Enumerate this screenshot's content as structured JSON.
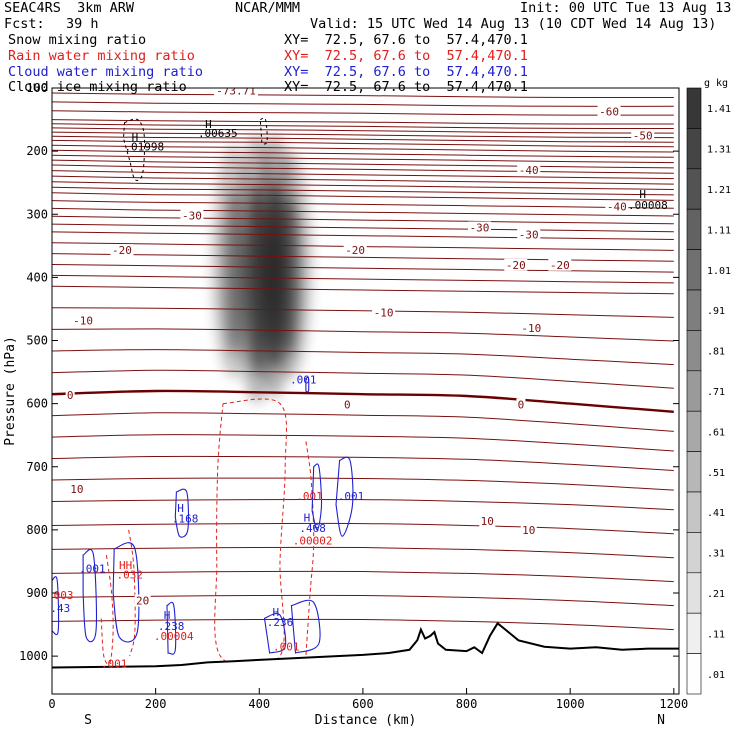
{
  "header": {
    "model": "SEAC4RS  3km ARW",
    "center": "NCAR/MMM",
    "init": "Init: 00 UTC Tue 13 Aug 13",
    "fcst_label": "Fcst:",
    "fcst_value": "39 h",
    "valid": "Valid: 15 UTC Wed 14 Aug 13 (10 CDT Wed 14 Aug 13)",
    "fields": [
      {
        "name": "Snow mixing ratio",
        "xy": "XY=  72.5, 67.6 to  57.4,470.1",
        "color": "#000000"
      },
      {
        "name": "Rain water mixing ratio",
        "xy": "XY=  72.5, 67.6 to  57.4,470.1",
        "color": "#e0201c"
      },
      {
        "name": "Cloud water mixing ratio",
        "xy": "XY=  72.5, 67.6 to  57.4,470.1",
        "color": "#2020d0"
      },
      {
        "name": "Cloud ice mixing ratio",
        "xy": "XY=  72.5, 67.6 to  57.4,470.1",
        "color": "#000000"
      }
    ]
  },
  "colors": {
    "temperature": "#7a1010",
    "freezing_level": "#6a0000",
    "rain": "#e0201c",
    "cloud_water": "#2020d0",
    "snow": "#000000",
    "terrain": "#000000"
  },
  "chart_data": {
    "type": "heatmap",
    "xlabel": "Distance (km)",
    "ylabel": "Pressure (hPa)",
    "xlim": [
      0,
      1210
    ],
    "ylim": [
      1060,
      100
    ],
    "x_ticks": [
      0,
      200,
      400,
      600,
      800,
      1000,
      1200
    ],
    "y_ticks": [
      200,
      300,
      400,
      500,
      600,
      700,
      800,
      900,
      1000
    ],
    "y_top_tick": "100",
    "end_labels": {
      "left": "S",
      "right": "N"
    },
    "colorbar": {
      "unit": "g kg",
      "unit_exp": "-1",
      "levels": [
        "1.41",
        "1.31",
        "1.21",
        "1.11",
        "1.01",
        ".91",
        ".81",
        ".71",
        ".61",
        ".51",
        ".41",
        ".31",
        ".21",
        ".11",
        ".01"
      ],
      "values": [
        1.41,
        1.31,
        1.21,
        1.11,
        1.01,
        0.91,
        0.81,
        0.71,
        0.61,
        0.51,
        0.41,
        0.31,
        0.21,
        0.11,
        0.01
      ]
    },
    "temperature_contours": [
      {
        "label": "-60",
        "p": [
          150,
          152,
          153,
          154,
          156,
          157,
          157
        ]
      },
      {
        "label": "-50",
        "p": [
          183,
          185,
          186,
          188,
          190,
          192,
          193
        ]
      },
      {
        "label": "-40",
        "p": [
          222,
          225,
          227,
          229,
          231,
          233,
          235
        ]
      },
      {
        "label": "-30",
        "p": [
          266,
          269,
          270,
          272,
          274,
          276,
          278
        ]
      },
      {
        "label": "-20",
        "p": [
          328,
          330,
          332,
          334,
          336,
          338,
          340
        ]
      },
      {
        "label": "-10",
        "p": [
          414,
          416,
          418,
          420,
          422,
          424,
          426
        ]
      },
      {
        "label": "0",
        "p": [
          585,
          580,
          582,
          585,
          588,
          600,
          613
        ]
      },
      {
        "label": "10",
        "p": [
          755,
          753,
          752,
          752,
          755,
          760,
          768
        ]
      }
    ],
    "temperature_contour_x": [
      0,
      200,
      400,
      600,
      800,
      1000,
      1200
    ],
    "temperature_labels": [
      {
        "text": "-73.71",
        "x": 355,
        "p": 104
      },
      {
        "text": "-60",
        "x": 1075,
        "p": 137
      },
      {
        "text": "-50",
        "x": 1140,
        "p": 175
      },
      {
        "text": "-40",
        "x": 920,
        "p": 230
      },
      {
        "text": "-40",
        "x": 1090,
        "p": 288
      },
      {
        "text": "-30",
        "x": 270,
        "p": 302
      },
      {
        "text": "-30",
        "x": 825,
        "p": 321
      },
      {
        "text": "-30",
        "x": 920,
        "p": 332
      },
      {
        "text": "-20",
        "x": 135,
        "p": 357
      },
      {
        "text": "-20",
        "x": 585,
        "p": 357
      },
      {
        "text": "-20",
        "x": 895,
        "p": 380
      },
      {
        "text": "-20",
        "x": 980,
        "p": 380
      },
      {
        "text": "-10",
        "x": 60,
        "p": 468
      },
      {
        "text": "-10",
        "x": 640,
        "p": 456
      },
      {
        "text": "-10",
        "x": 925,
        "p": 480
      },
      {
        "text": "0",
        "x": 35,
        "p": 586
      },
      {
        "text": "0",
        "x": 570,
        "p": 601
      },
      {
        "text": "0",
        "x": 905,
        "p": 601
      },
      {
        "text": "10",
        "x": 48,
        "p": 735
      },
      {
        "text": "10",
        "x": 840,
        "p": 786
      },
      {
        "text": "10",
        "x": 920,
        "p": 800
      },
      {
        "text": "20",
        "x": 175,
        "p": 912
      }
    ],
    "snow_max": 1.41,
    "snow_core": [
      {
        "x": 350,
        "p_top": 190,
        "p_bottom": 560,
        "peak": 0.7
      },
      {
        "x": 395,
        "p_top": 175,
        "p_bottom": 600,
        "peak": 1.2
      },
      {
        "x": 430,
        "p_top": 175,
        "p_bottom": 590,
        "peak": 1.31
      },
      {
        "x": 460,
        "p_top": 200,
        "p_bottom": 560,
        "peak": 0.8
      }
    ],
    "annotations": [
      {
        "text": "H",
        "x": 160,
        "p": 178,
        "color": "black"
      },
      {
        "text": ".01998",
        "x": 178,
        "p": 193,
        "color": "black"
      },
      {
        "text": "H",
        "x": 302,
        "p": 157,
        "color": "black"
      },
      {
        "text": ".00635",
        "x": 320,
        "p": 171,
        "color": "black"
      },
      {
        "text": "H",
        "x": 1140,
        "p": 268,
        "color": "black"
      },
      {
        "text": ".00008",
        "x": 1150,
        "p": 285,
        "color": "black"
      },
      {
        "text": ".001",
        "x": 485,
        "p": 562,
        "color": "blue"
      },
      {
        "text": ".001",
        "x": 497,
        "p": 746,
        "color": "red"
      },
      {
        "text": ".001",
        "x": 577,
        "p": 746,
        "color": "blue"
      },
      {
        "text": "H",
        "x": 492,
        "p": 780,
        "color": "blue"
      },
      {
        "text": ".468",
        "x": 503,
        "p": 797,
        "color": "blue"
      },
      {
        "text": ".00002",
        "x": 503,
        "p": 817,
        "color": "red"
      },
      {
        "text": "H",
        "x": 248,
        "p": 765,
        "color": "blue"
      },
      {
        "text": ".168",
        "x": 257,
        "p": 782,
        "color": "blue"
      },
      {
        "text": ".001",
        "x": 78,
        "p": 861,
        "color": "blue"
      },
      {
        "text": "HH",
        "x": 142,
        "p": 856,
        "color": "red"
      },
      {
        "text": ".032",
        "x": 150,
        "p": 871,
        "color": "red"
      },
      {
        "text": ".003",
        "x": 16,
        "p": 903,
        "color": "red"
      },
      {
        "text": ".43",
        "x": 16,
        "p": 924,
        "color": "blue"
      },
      {
        "text": "H",
        "x": 222,
        "p": 935,
        "color": "blue"
      },
      {
        "text": ".238",
        "x": 230,
        "p": 952,
        "color": "blue"
      },
      {
        "text": ".00004",
        "x": 235,
        "p": 968,
        "color": "red"
      },
      {
        "text": "H",
        "x": 432,
        "p": 930,
        "color": "blue"
      },
      {
        "text": ".236",
        "x": 440,
        "p": 946,
        "color": "blue"
      },
      {
        "text": ".001",
        "x": 452,
        "p": 985,
        "color": "red"
      },
      {
        "text": ".001",
        "x": 120,
        "p": 1012,
        "color": "red"
      }
    ],
    "terrain": [
      {
        "x": 0,
        "p": 1018
      },
      {
        "x": 100,
        "p": 1017
      },
      {
        "x": 200,
        "p": 1016
      },
      {
        "x": 250,
        "p": 1014
      },
      {
        "x": 300,
        "p": 1010
      },
      {
        "x": 350,
        "p": 1008
      },
      {
        "x": 400,
        "p": 1006
      },
      {
        "x": 450,
        "p": 1004
      },
      {
        "x": 500,
        "p": 1002
      },
      {
        "x": 550,
        "p": 1000
      },
      {
        "x": 600,
        "p": 998
      },
      {
        "x": 650,
        "p": 995
      },
      {
        "x": 690,
        "p": 990
      },
      {
        "x": 705,
        "p": 975
      },
      {
        "x": 712,
        "p": 958
      },
      {
        "x": 720,
        "p": 972
      },
      {
        "x": 730,
        "p": 968
      },
      {
        "x": 738,
        "p": 962
      },
      {
        "x": 745,
        "p": 980
      },
      {
        "x": 760,
        "p": 990
      },
      {
        "x": 800,
        "p": 992
      },
      {
        "x": 815,
        "p": 986
      },
      {
        "x": 830,
        "p": 995
      },
      {
        "x": 845,
        "p": 968
      },
      {
        "x": 860,
        "p": 948
      },
      {
        "x": 875,
        "p": 958
      },
      {
        "x": 900,
        "p": 975
      },
      {
        "x": 950,
        "p": 985
      },
      {
        "x": 1000,
        "p": 988
      },
      {
        "x": 1050,
        "p": 986
      },
      {
        "x": 1100,
        "p": 990
      },
      {
        "x": 1150,
        "p": 988
      },
      {
        "x": 1210,
        "p": 988
      }
    ]
  }
}
